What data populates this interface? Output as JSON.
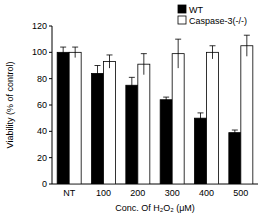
{
  "chart_data": {
    "type": "bar",
    "categories": [
      "NT",
      "100",
      "200",
      "300",
      "400",
      "500"
    ],
    "series": [
      {
        "name": "WT",
        "color": "#000000",
        "values": [
          100,
          84,
          75,
          64,
          50,
          39
        ],
        "errors": [
          4,
          6,
          6,
          2,
          4,
          2
        ]
      },
      {
        "name": "Caspase-3(-/-)",
        "color": "#ffffff",
        "values": [
          100,
          93,
          91,
          99,
          100,
          105
        ],
        "errors": [
          4,
          5,
          8,
          11,
          5,
          8
        ]
      }
    ],
    "y_label": "Viability (% of control)",
    "x_label": "Conc. Of H₂O₂ (μM)",
    "ylim": [
      0,
      120
    ],
    "yticks": [
      0,
      20,
      40,
      60,
      80,
      100,
      120
    ],
    "legend": "top-right",
    "grid": false
  }
}
